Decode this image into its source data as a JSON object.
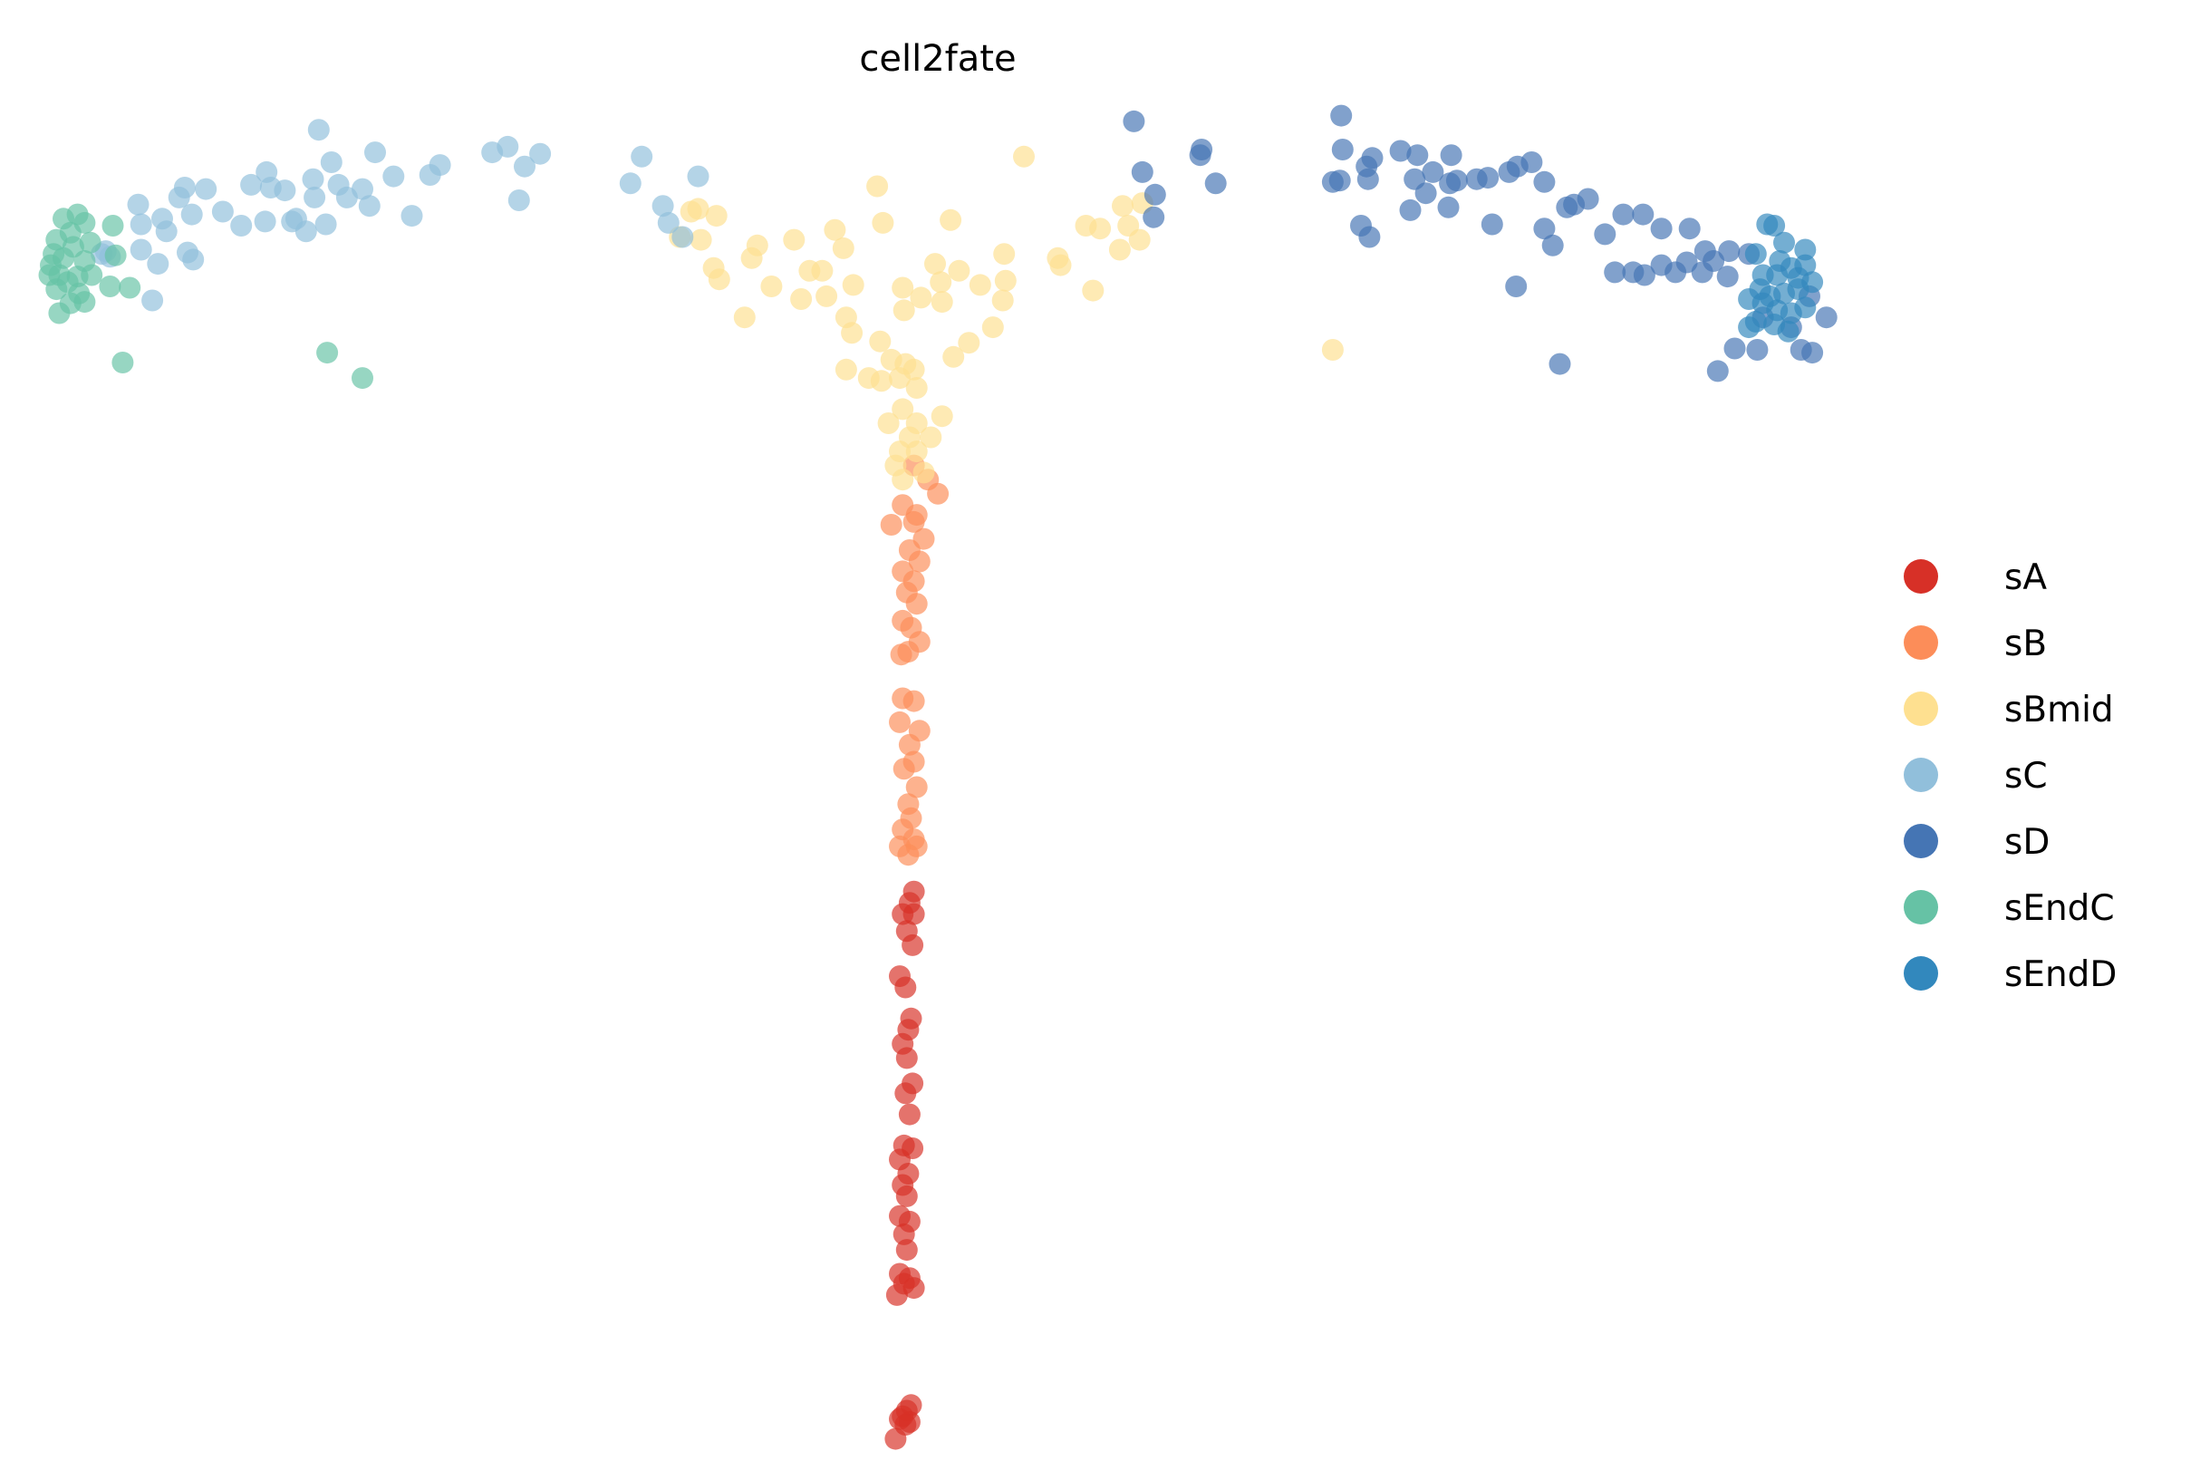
{
  "chart_data": {
    "type": "scatter",
    "title": "cell2fate",
    "xlabel": "",
    "ylabel": "",
    "axes_visible": false,
    "grid": false,
    "legend_placement": "right",
    "xlim": [
      0.2,
      13.2
    ],
    "ylim": [
      -10.3,
      -0.7
    ],
    "series": [
      {
        "name": "sA",
        "color": "#d73027",
        "points": [
          [
            6.48,
            -6.32
          ],
          [
            6.45,
            -6.4
          ],
          [
            6.4,
            -6.48
          ],
          [
            6.48,
            -6.48
          ],
          [
            6.43,
            -6.6
          ],
          [
            6.47,
            -6.7
          ],
          [
            6.38,
            -6.92
          ],
          [
            6.42,
            -7.0
          ],
          [
            6.46,
            -7.22
          ],
          [
            6.44,
            -7.3
          ],
          [
            6.4,
            -7.4
          ],
          [
            6.43,
            -7.5
          ],
          [
            6.47,
            -7.68
          ],
          [
            6.42,
            -7.75
          ],
          [
            6.45,
            -7.9
          ],
          [
            6.41,
            -8.12
          ],
          [
            6.47,
            -8.14
          ],
          [
            6.38,
            -8.22
          ],
          [
            6.44,
            -8.32
          ],
          [
            6.4,
            -8.4
          ],
          [
            6.43,
            -8.48
          ],
          [
            6.38,
            -8.62
          ],
          [
            6.45,
            -8.66
          ],
          [
            6.41,
            -8.75
          ],
          [
            6.43,
            -8.86
          ],
          [
            6.38,
            -9.03
          ],
          [
            6.45,
            -9.06
          ],
          [
            6.41,
            -9.1
          ],
          [
            6.48,
            -9.13
          ],
          [
            6.36,
            -9.18
          ],
          [
            6.43,
            -10.0
          ],
          [
            6.46,
            -9.96
          ],
          [
            6.4,
            -10.04
          ],
          [
            6.45,
            -10.08
          ],
          [
            6.38,
            -10.06
          ],
          [
            6.35,
            -10.2
          ],
          [
            6.42,
            -10.1
          ]
        ]
      },
      {
        "name": "sB",
        "color": "#fc8d59",
        "points": [
          [
            6.48,
            -3.3
          ],
          [
            6.58,
            -3.4
          ],
          [
            6.65,
            -3.5
          ],
          [
            6.4,
            -3.58
          ],
          [
            6.5,
            -3.65
          ],
          [
            6.32,
            -3.72
          ],
          [
            6.48,
            -3.7
          ],
          [
            6.55,
            -3.82
          ],
          [
            6.45,
            -3.9
          ],
          [
            6.4,
            -4.05
          ],
          [
            6.52,
            -3.98
          ],
          [
            6.48,
            -4.12
          ],
          [
            6.43,
            -4.2
          ],
          [
            6.5,
            -4.28
          ],
          [
            6.4,
            -4.4
          ],
          [
            6.46,
            -4.45
          ],
          [
            6.52,
            -4.55
          ],
          [
            6.44,
            -4.62
          ],
          [
            6.39,
            -4.64
          ],
          [
            6.48,
            -4.97
          ],
          [
            6.4,
            -4.95
          ],
          [
            6.52,
            -5.18
          ],
          [
            6.38,
            -5.12
          ],
          [
            6.45,
            -5.28
          ],
          [
            6.41,
            -5.45
          ],
          [
            6.48,
            -5.4
          ],
          [
            6.5,
            -5.58
          ],
          [
            6.44,
            -5.7
          ],
          [
            6.46,
            -5.8
          ],
          [
            6.4,
            -5.88
          ],
          [
            6.48,
            -5.95
          ],
          [
            6.38,
            -6.0
          ],
          [
            6.44,
            -6.06
          ],
          [
            6.5,
            -6.0
          ]
        ]
      },
      {
        "name": "sBmid",
        "color": "#fee090",
        "points": [
          [
            6.22,
            -1.32
          ],
          [
            6.26,
            -1.58
          ],
          [
            6.74,
            -1.56
          ],
          [
            7.26,
            -1.11
          ],
          [
            7.7,
            -1.6
          ],
          [
            7.8,
            -1.62
          ],
          [
            7.96,
            -1.46
          ],
          [
            8.1,
            -1.44
          ],
          [
            8.0,
            -1.6
          ],
          [
            8.08,
            -1.7
          ],
          [
            7.94,
            -1.77
          ],
          [
            7.5,
            -1.83
          ],
          [
            7.52,
            -1.88
          ],
          [
            7.75,
            -2.06
          ],
          [
            7.12,
            -1.8
          ],
          [
            7.13,
            -1.99
          ],
          [
            7.11,
            -2.13
          ],
          [
            6.95,
            -2.02
          ],
          [
            6.8,
            -1.92
          ],
          [
            6.67,
            -2.0
          ],
          [
            6.63,
            -1.87
          ],
          [
            6.68,
            -2.14
          ],
          [
            6.53,
            -2.11
          ],
          [
            6.4,
            -2.04
          ],
          [
            6.41,
            -2.2
          ],
          [
            6.87,
            -2.43
          ],
          [
            6.76,
            -2.53
          ],
          [
            7.04,
            -2.32
          ],
          [
            6.24,
            -2.42
          ],
          [
            6.32,
            -2.55
          ],
          [
            6.16,
            -2.68
          ],
          [
            6.0,
            -2.62
          ],
          [
            6.42,
            -2.58
          ],
          [
            6.48,
            -2.62
          ],
          [
            6.38,
            -2.68
          ],
          [
            6.25,
            -2.7
          ],
          [
            6.5,
            -2.75
          ],
          [
            6.3,
            -3.0
          ],
          [
            6.4,
            -2.9
          ],
          [
            6.5,
            -3.0
          ],
          [
            6.68,
            -2.95
          ],
          [
            6.6,
            -3.1
          ],
          [
            6.45,
            -3.1
          ],
          [
            6.38,
            -3.2
          ],
          [
            6.5,
            -3.2
          ],
          [
            6.35,
            -3.3
          ],
          [
            6.55,
            -3.35
          ],
          [
            6.4,
            -3.4
          ],
          [
            4.9,
            -1.5
          ],
          [
            4.95,
            -1.48
          ],
          [
            5.08,
            -1.53
          ],
          [
            4.82,
            -1.68
          ],
          [
            4.97,
            -1.7
          ],
          [
            5.06,
            -1.9
          ],
          [
            5.1,
            -1.98
          ],
          [
            5.33,
            -1.83
          ],
          [
            5.37,
            -1.74
          ],
          [
            5.47,
            -2.03
          ],
          [
            5.63,
            -1.7
          ],
          [
            5.74,
            -1.92
          ],
          [
            5.68,
            -2.12
          ],
          [
            5.83,
            -1.92
          ],
          [
            5.86,
            -2.1
          ],
          [
            5.92,
            -1.63
          ],
          [
            5.98,
            -1.76
          ],
          [
            6.05,
            -2.02
          ],
          [
            6.0,
            -2.25
          ],
          [
            6.04,
            -2.36
          ],
          [
            5.28,
            -2.25
          ],
          [
            9.45,
            -2.48
          ]
        ]
      },
      {
        "name": "sC",
        "color": "#91bfdb",
        "points": [
          [
            2.26,
            -0.92
          ],
          [
            2.35,
            -1.15
          ],
          [
            2.66,
            -1.08
          ],
          [
            3.12,
            -1.17
          ],
          [
            3.49,
            -1.08
          ],
          [
            3.6,
            -1.04
          ],
          [
            3.83,
            -1.09
          ],
          [
            3.72,
            -1.18
          ],
          [
            3.68,
            -1.42
          ],
          [
            4.55,
            -1.11
          ],
          [
            4.47,
            -1.3
          ],
          [
            4.95,
            -1.25
          ],
          [
            4.7,
            -1.46
          ],
          [
            4.74,
            -1.58
          ],
          [
            4.84,
            -1.68
          ],
          [
            2.92,
            -1.53
          ],
          [
            3.05,
            -1.24
          ],
          [
            2.79,
            -1.25
          ],
          [
            2.57,
            -1.34
          ],
          [
            2.62,
            -1.46
          ],
          [
            2.4,
            -1.31
          ],
          [
            2.22,
            -1.27
          ],
          [
            1.89,
            -1.22
          ],
          [
            1.78,
            -1.31
          ],
          [
            1.92,
            -1.33
          ],
          [
            2.02,
            -1.35
          ],
          [
            1.58,
            -1.5
          ],
          [
            1.71,
            -1.6
          ],
          [
            1.88,
            -1.57
          ],
          [
            2.1,
            -1.55
          ],
          [
            2.17,
            -1.64
          ],
          [
            2.31,
            -1.59
          ],
          [
            2.46,
            -1.4
          ],
          [
            2.23,
            -1.4
          ],
          [
            2.07,
            -1.57
          ],
          [
            1.46,
            -1.34
          ],
          [
            1.31,
            -1.33
          ],
          [
            1.27,
            -1.4
          ],
          [
            1.15,
            -1.55
          ],
          [
            0.98,
            -1.45
          ],
          [
            1.0,
            -1.59
          ],
          [
            1.18,
            -1.64
          ],
          [
            1.12,
            -1.87
          ],
          [
            1.0,
            -1.77
          ],
          [
            0.72,
            -1.8
          ],
          [
            0.78,
            -1.82
          ],
          [
            1.33,
            -1.79
          ],
          [
            1.37,
            -1.84
          ],
          [
            1.08,
            -2.13
          ],
          [
            0.75,
            -1.78
          ],
          [
            1.36,
            -1.52
          ]
        ]
      },
      {
        "name": "sD",
        "color": "#4575b4",
        "points": [
          [
            8.04,
            -0.86
          ],
          [
            9.51,
            -0.82
          ],
          [
            9.52,
            -1.06
          ],
          [
            9.69,
            -1.18
          ],
          [
            9.73,
            -1.12
          ],
          [
            9.93,
            -1.07
          ],
          [
            10.05,
            -1.1
          ],
          [
            10.29,
            -1.1
          ],
          [
            8.52,
            -1.06
          ],
          [
            8.51,
            -1.1
          ],
          [
            8.62,
            -1.3
          ],
          [
            8.1,
            -1.22
          ],
          [
            8.19,
            -1.38
          ],
          [
            8.18,
            -1.54
          ],
          [
            9.45,
            -1.29
          ],
          [
            9.5,
            -1.28
          ],
          [
            9.7,
            -1.27
          ],
          [
            10.03,
            -1.27
          ],
          [
            10.16,
            -1.22
          ],
          [
            10.11,
            -1.37
          ],
          [
            10.28,
            -1.3
          ],
          [
            10.33,
            -1.28
          ],
          [
            10.47,
            -1.27
          ],
          [
            10.55,
            -1.26
          ],
          [
            10.7,
            -1.22
          ],
          [
            10.76,
            -1.18
          ],
          [
            10.86,
            -1.15
          ],
          [
            10.95,
            -1.29
          ],
          [
            11.16,
            -1.45
          ],
          [
            11.26,
            -1.41
          ],
          [
            9.65,
            -1.6
          ],
          [
            9.71,
            -1.68
          ],
          [
            10.0,
            -1.49
          ],
          [
            10.27,
            -1.47
          ],
          [
            10.58,
            -1.59
          ],
          [
            10.95,
            -1.62
          ],
          [
            11.01,
            -1.74
          ],
          [
            11.11,
            -1.47
          ],
          [
            11.38,
            -1.66
          ],
          [
            11.51,
            -1.52
          ],
          [
            11.65,
            -1.52
          ],
          [
            11.78,
            -1.62
          ],
          [
            11.98,
            -1.62
          ],
          [
            12.09,
            -1.78
          ],
          [
            12.26,
            -1.78
          ],
          [
            12.15,
            -1.85
          ],
          [
            11.45,
            -1.93
          ],
          [
            11.58,
            -1.93
          ],
          [
            11.66,
            -1.95
          ],
          [
            11.78,
            -1.88
          ],
          [
            11.88,
            -1.93
          ],
          [
            11.96,
            -1.86
          ],
          [
            12.07,
            -1.93
          ],
          [
            12.25,
            -1.96
          ],
          [
            12.4,
            -1.8
          ],
          [
            10.75,
            -2.03
          ],
          [
            11.06,
            -2.58
          ],
          [
            12.18,
            -2.63
          ],
          [
            12.46,
            -2.48
          ],
          [
            12.3,
            -2.47
          ],
          [
            12.77,
            -2.48
          ],
          [
            12.85,
            -2.5
          ],
          [
            12.95,
            -2.25
          ],
          [
            12.83,
            -2.1
          ],
          [
            12.7,
            -2.32
          ],
          [
            12.5,
            -2.25
          ]
        ]
      },
      {
        "name": "sEndC",
        "color": "#66c2a5",
        "points": [
          [
            0.45,
            -1.55
          ],
          [
            0.55,
            -1.52
          ],
          [
            0.6,
            -1.58
          ],
          [
            0.5,
            -1.65
          ],
          [
            0.4,
            -1.7
          ],
          [
            0.38,
            -1.8
          ],
          [
            0.36,
            -1.88
          ],
          [
            0.42,
            -1.95
          ],
          [
            0.48,
            -2.0
          ],
          [
            0.55,
            -1.96
          ],
          [
            0.6,
            -1.85
          ],
          [
            0.64,
            -1.72
          ],
          [
            0.52,
            -1.75
          ],
          [
            0.45,
            -1.83
          ],
          [
            0.35,
            -1.95
          ],
          [
            0.56,
            -2.08
          ],
          [
            0.5,
            -2.15
          ],
          [
            0.42,
            -2.22
          ],
          [
            0.6,
            -2.14
          ],
          [
            0.8,
            -1.6
          ],
          [
            0.82,
            -1.81
          ],
          [
            0.92,
            -2.04
          ],
          [
            0.78,
            -2.03
          ],
          [
            0.87,
            -2.57
          ],
          [
            2.32,
            -2.5
          ],
          [
            2.57,
            -2.68
          ],
          [
            0.4,
            -2.05
          ],
          [
            0.65,
            -1.95
          ]
        ]
      },
      {
        "name": "sEndD",
        "color": "#3288bd",
        "points": [
          [
            12.53,
            -1.59
          ],
          [
            12.58,
            -1.6
          ],
          [
            12.65,
            -1.72
          ],
          [
            12.8,
            -1.77
          ],
          [
            12.45,
            -1.8
          ],
          [
            12.5,
            -1.95
          ],
          [
            12.6,
            -1.95
          ],
          [
            12.7,
            -1.9
          ],
          [
            12.8,
            -1.88
          ],
          [
            12.85,
            -2.0
          ],
          [
            12.75,
            -2.05
          ],
          [
            12.65,
            -2.08
          ],
          [
            12.55,
            -2.1
          ],
          [
            12.48,
            -2.05
          ],
          [
            12.4,
            -2.12
          ],
          [
            12.6,
            -2.2
          ],
          [
            12.7,
            -2.22
          ],
          [
            12.8,
            -2.18
          ],
          [
            12.58,
            -2.3
          ],
          [
            12.68,
            -2.35
          ],
          [
            12.45,
            -2.28
          ],
          [
            12.4,
            -2.32
          ],
          [
            12.75,
            -1.97
          ],
          [
            12.62,
            -1.85
          ],
          [
            12.5,
            -2.15
          ]
        ]
      }
    ]
  }
}
